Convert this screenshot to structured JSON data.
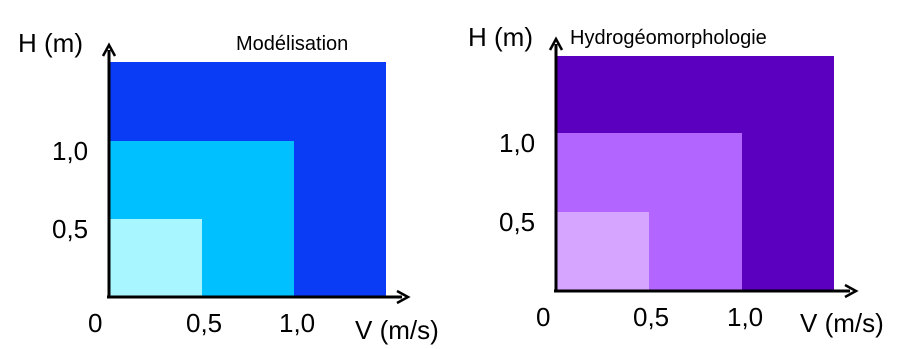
{
  "panels": [
    {
      "title": "Modélisation",
      "y_axis_label": "H (m)",
      "x_axis_label": "V (m/s)",
      "origin_label": "0",
      "x_ticks": [
        "0,5",
        "1,0"
      ],
      "y_ticks": [
        "1,0",
        "0,5"
      ],
      "zones": [
        {
          "name": "outer",
          "color": "#0A3BF5"
        },
        {
          "name": "middle",
          "color": "#00C0FF"
        },
        {
          "name": "inner",
          "color": "#A8F6FF"
        }
      ]
    },
    {
      "title": "Hydrogéomorphologie",
      "y_axis_label": "H (m)",
      "x_axis_label": "V (m/s)",
      "origin_label": "0",
      "x_ticks": [
        "0,5",
        "1,0"
      ],
      "y_ticks": [
        "1,0",
        "0,5"
      ],
      "zones": [
        {
          "name": "outer",
          "color": "#5A00BE"
        },
        {
          "name": "middle",
          "color": "#B266FF"
        },
        {
          "name": "inner",
          "color": "#D5A5FF"
        }
      ]
    }
  ]
}
